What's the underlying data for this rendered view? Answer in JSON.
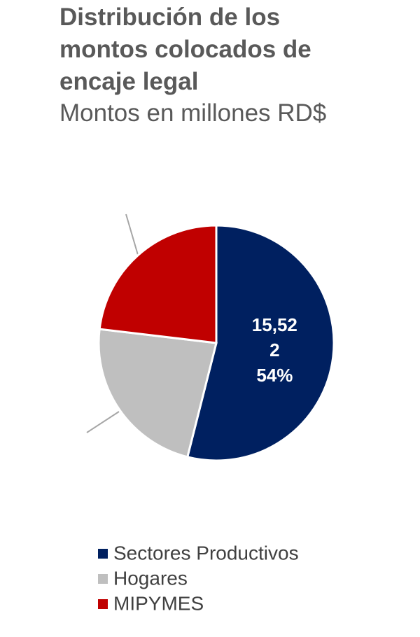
{
  "chart_data": {
    "type": "pie",
    "title": "Distribución de los montos colocados de encaje legal",
    "subtitle": "Montos en millones RD$",
    "categories": [
      "Sectores Productivos",
      "Hogares",
      "MIPYMES"
    ],
    "values": [
      15522,
      6600,
      6650
    ],
    "value_labels": [
      "15,522",
      null,
      null
    ],
    "percent_labels": [
      "54%",
      null,
      null
    ],
    "colors": [
      "#002060",
      "#bfbfbf",
      "#c00000"
    ],
    "legend": "bottom"
  }
}
